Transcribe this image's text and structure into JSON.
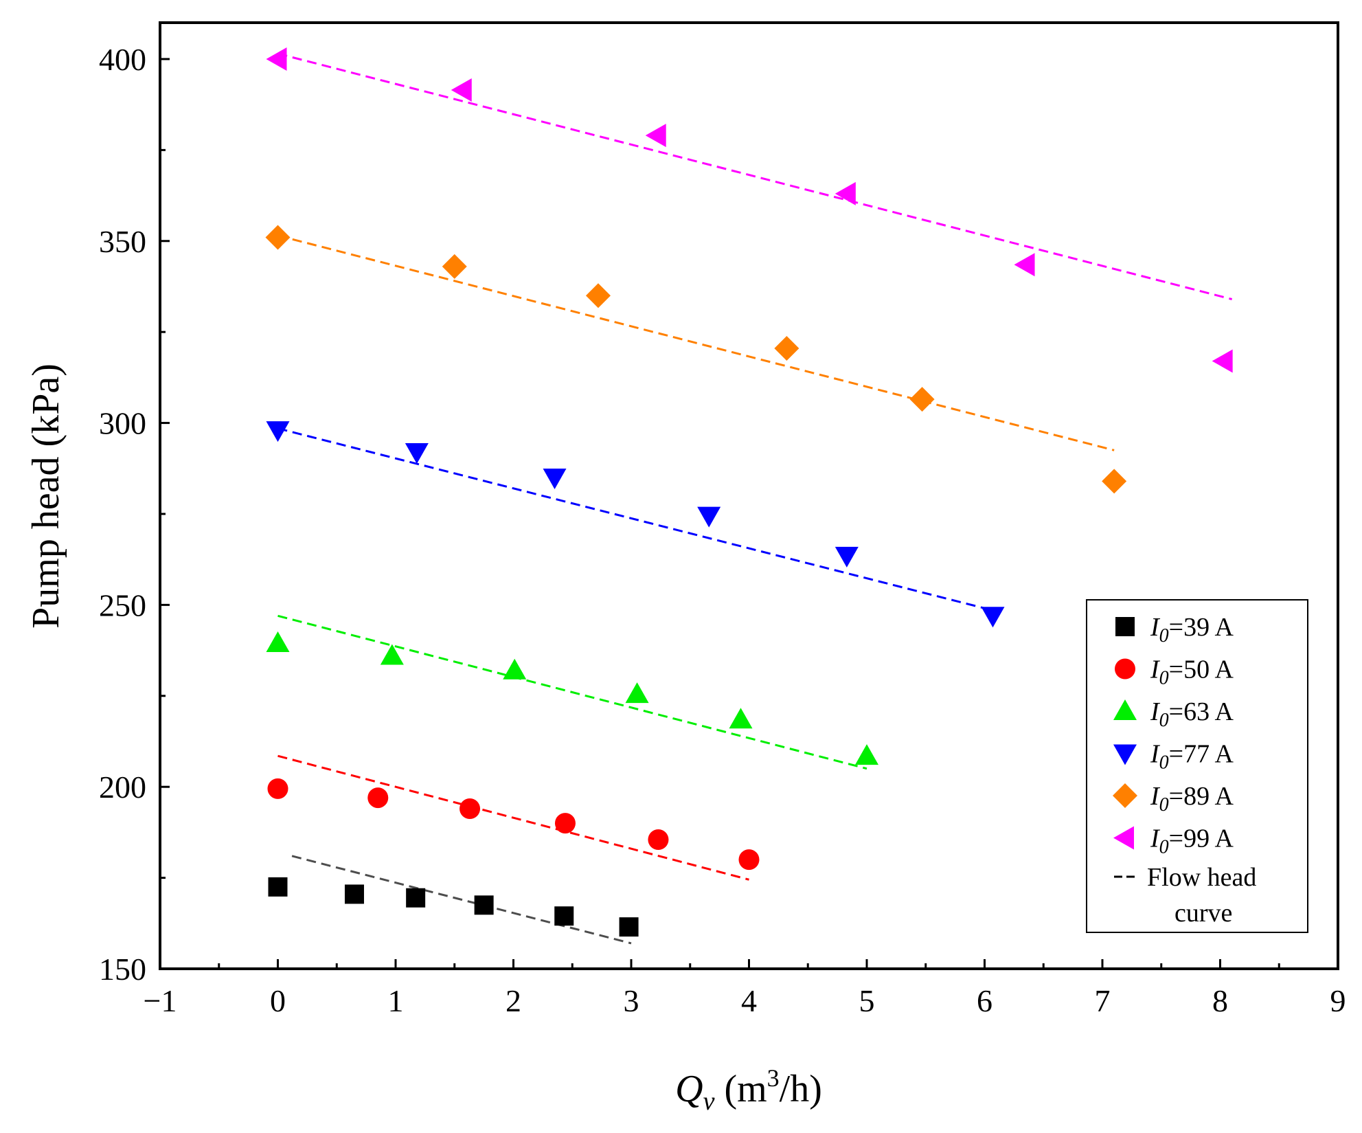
{
  "chart_data": {
    "type": "scatter",
    "title": "",
    "xlabel": {
      "main": "Q",
      "sub": "v",
      "unit_prefix": " (m",
      "sup": "3",
      "unit_suffix": "/h)"
    },
    "ylabel": "Pump head (kPa)",
    "xlim": [
      -1,
      9
    ],
    "ylim": [
      150,
      410
    ],
    "xticks": [
      -1,
      0,
      1,
      2,
      3,
      4,
      5,
      6,
      7,
      8,
      9
    ],
    "xtick_labels": [
      "−1",
      "0",
      "1",
      "2",
      "3",
      "4",
      "5",
      "6",
      "7",
      "8",
      "9"
    ],
    "yticks": [
      150,
      200,
      250,
      300,
      350,
      400
    ],
    "ytick_labels": [
      "150",
      "200",
      "250",
      "300",
      "350",
      "400"
    ],
    "grid": false,
    "legend_position": "bottom-right",
    "series": [
      {
        "name": "I0=39 A",
        "legend_main": "I",
        "legend_sub": "0",
        "legend_rest": "=39 A",
        "marker": "square",
        "color": "#000000",
        "x": [
          0,
          0.65,
          1.17,
          1.75,
          2.43,
          2.98
        ],
        "y": [
          172.5,
          170.5,
          169.5,
          167.5,
          164.5,
          161.5
        ],
        "fit": {
          "x": [
            0.12,
            3.0
          ],
          "y": [
            181,
            157
          ],
          "color": "#4d4d4d"
        }
      },
      {
        "name": "I0=50 A",
        "legend_main": "I",
        "legend_sub": "0",
        "legend_rest": "=50 A",
        "marker": "circle",
        "color": "#ff0000",
        "x": [
          0,
          0.85,
          1.63,
          2.44,
          3.23,
          4.0
        ],
        "y": [
          199.5,
          197,
          194,
          190,
          185.5,
          180
        ],
        "fit": {
          "x": [
            0,
            4.0
          ],
          "y": [
            208.5,
            174.5
          ],
          "color": "#ff0000"
        }
      },
      {
        "name": "I0=63 A",
        "legend_main": "I",
        "legend_sub": "0",
        "legend_rest": "=63 A",
        "marker": "triangle-up",
        "color": "#00ee00",
        "x": [
          0,
          0.97,
          2.01,
          3.05,
          3.93,
          5.0
        ],
        "y": [
          239.5,
          236,
          232,
          225.5,
          218.5,
          208.5
        ],
        "fit": {
          "x": [
            0,
            5.0
          ],
          "y": [
            247,
            205
          ],
          "color": "#00ee00"
        }
      },
      {
        "name": "I0=77 A",
        "legend_main": "I",
        "legend_sub": "0",
        "legend_rest": "=77 A",
        "marker": "triangle-down",
        "color": "#0000ff",
        "x": [
          0,
          1.18,
          2.35,
          3.66,
          4.83,
          6.07
        ],
        "y": [
          298,
          292,
          285,
          274.5,
          263.5,
          247
        ],
        "fit": {
          "x": [
            0,
            6.07
          ],
          "y": [
            298.5,
            248.5
          ],
          "color": "#0000ff"
        }
      },
      {
        "name": "I0=89 A",
        "legend_main": "I",
        "legend_sub": "0",
        "legend_rest": "=89 A",
        "marker": "diamond",
        "color": "#ff8000",
        "x": [
          0,
          1.5,
          2.72,
          4.32,
          5.47,
          7.1
        ],
        "y": [
          351,
          343,
          335,
          320.5,
          306.5,
          284
        ],
        "fit": {
          "x": [
            0,
            7.1
          ],
          "y": [
            351.5,
            292.5
          ],
          "color": "#ff8000"
        }
      },
      {
        "name": "I0=99 A",
        "legend_main": "I",
        "legend_sub": "0",
        "legend_rest": "=99 A",
        "marker": "triangle-left",
        "color": "#ff00ff",
        "x": [
          0,
          1.57,
          3.22,
          4.83,
          6.35,
          8.03
        ],
        "y": [
          400,
          391.5,
          379,
          363,
          343.5,
          317
        ],
        "fit": {
          "x": [
            0,
            8.1
          ],
          "y": [
            401.5,
            334
          ],
          "color": "#ff00ff"
        }
      }
    ],
    "legend_line_entry": {
      "line1": "Flow head",
      "line2": "curve"
    }
  }
}
